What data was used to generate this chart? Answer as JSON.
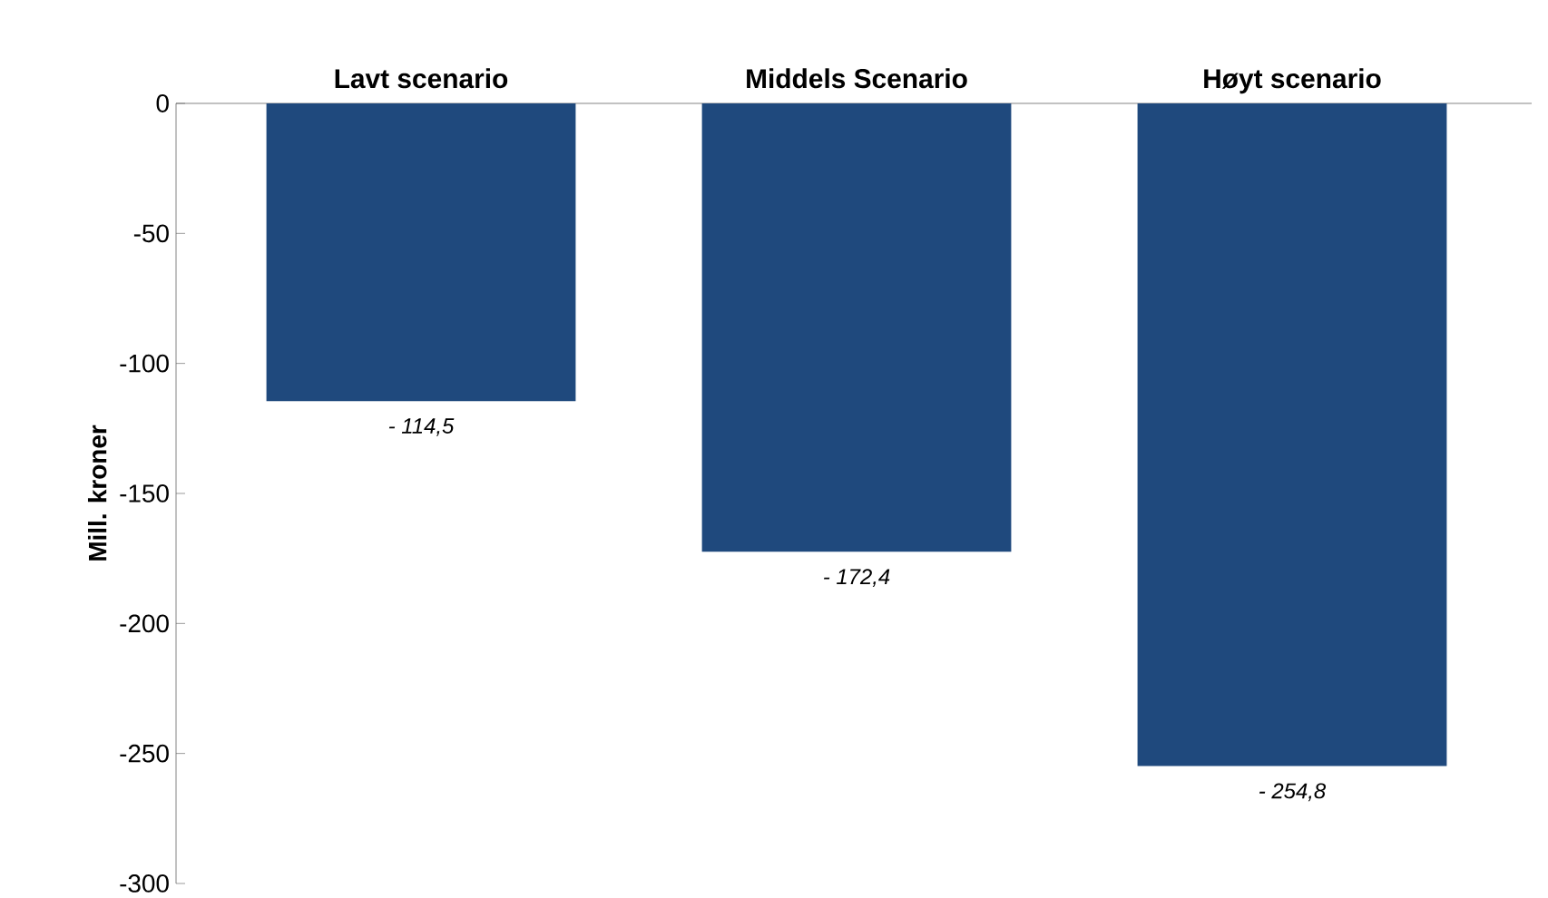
{
  "chart_data": {
    "type": "bar",
    "ylabel": "Mill. kroner",
    "categories": [
      "Lavt scenario",
      "Middels Scenario",
      "Høyt scenario"
    ],
    "values": [
      -114.5,
      -172.4,
      -254.8
    ],
    "value_labels": [
      "- 114,5",
      "- 172,4",
      "- 254,8"
    ],
    "color": "#1f497d",
    "ylim": [
      -300,
      0
    ],
    "yticks": [
      -300,
      -250,
      -200,
      -150,
      -100,
      -50,
      0
    ]
  }
}
